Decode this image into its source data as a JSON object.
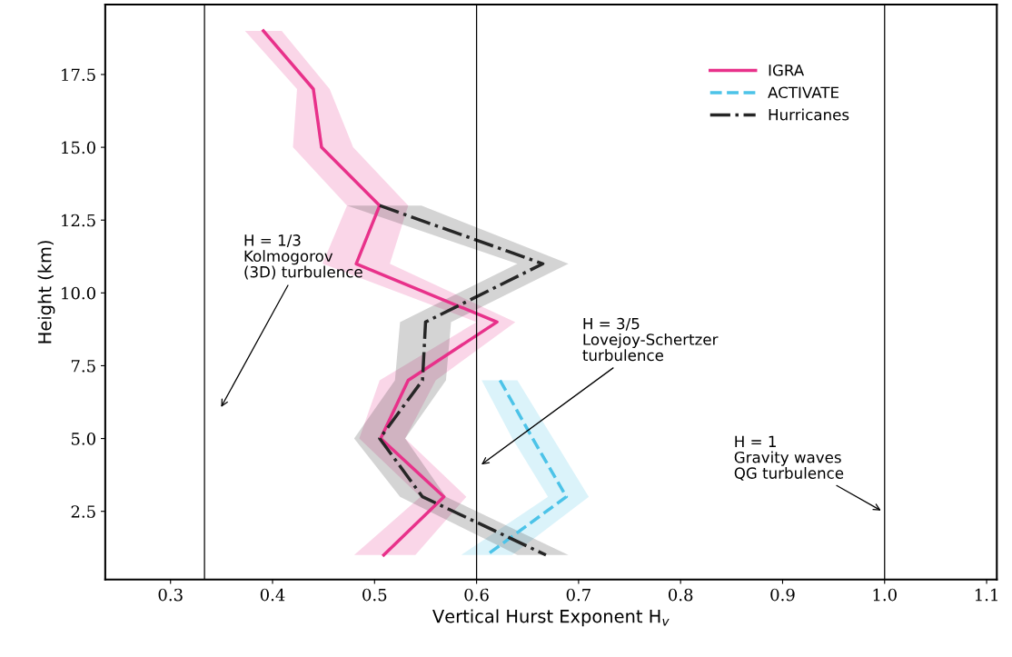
{
  "chart_data": {
    "type": "line",
    "orientation": "horizontal",
    "xlabel": "Vertical Hurst Exponent H$_{v}$",
    "ylabel": "Height (km)",
    "xlim": [
      0.236,
      1.11
    ],
    "ylim": [
      0.16,
      19.9
    ],
    "xticks": [
      {
        "value": 0.3,
        "label": "0.3"
      },
      {
        "value": 0.4,
        "label": "0.4"
      },
      {
        "value": 0.5,
        "label": "0.5"
      },
      {
        "value": 0.6,
        "label": "0.6"
      },
      {
        "value": 0.7,
        "label": "0.7"
      },
      {
        "value": 0.8,
        "label": "0.8"
      },
      {
        "value": 0.9,
        "label": "0.9"
      },
      {
        "value": 1.0,
        "label": "1.0"
      },
      {
        "value": 1.1,
        "label": "1.1"
      }
    ],
    "yticks": [
      {
        "value": 2.5,
        "label": "2.5"
      },
      {
        "value": 5.0,
        "label": "5.0"
      },
      {
        "value": 7.5,
        "label": "7.5"
      },
      {
        "value": 10.0,
        "label": "10.0"
      },
      {
        "value": 12.5,
        "label": "12.5"
      },
      {
        "value": 15.0,
        "label": "15.0"
      },
      {
        "value": 17.5,
        "label": "17.5"
      }
    ],
    "grid": false,
    "legend": "top right",
    "marker": "none",
    "series": [
      {
        "name": "IGRA",
        "color": "#e8318a",
        "line_style": "solid",
        "x": [
          19,
          17,
          15,
          13,
          11,
          9,
          7,
          5,
          3,
          1
        ],
        "values": [
          0.391,
          0.44,
          0.448,
          0.505,
          0.482,
          0.62,
          0.533,
          0.506,
          0.568,
          0.509
        ],
        "lower": [
          0.373,
          0.424,
          0.42,
          0.473,
          0.449,
          0.6,
          0.505,
          0.485,
          0.545,
          0.48
        ],
        "upper": [
          0.409,
          0.456,
          0.479,
          0.533,
          0.515,
          0.638,
          0.56,
          0.53,
          0.59,
          0.54
        ]
      },
      {
        "name": "ACTIVATE",
        "color": "#4cc3e8",
        "line_style": "dashed",
        "x": [
          7,
          5,
          3,
          1
        ],
        "values": [
          0.623,
          0.655,
          0.688,
          0.61
        ],
        "lower": [
          0.605,
          0.635,
          0.67,
          0.585
        ],
        "upper": [
          0.64,
          0.675,
          0.71,
          0.635
        ]
      },
      {
        "name": "Hurricanes",
        "color": "#262626",
        "line_style": "dashdot",
        "x": [
          13,
          11,
          9,
          7,
          5,
          3,
          1
        ],
        "values": [
          0.505,
          0.665,
          0.55,
          0.547,
          0.505,
          0.547,
          0.668
        ],
        "lower": [
          0.473,
          0.64,
          0.525,
          0.52,
          0.48,
          0.525,
          0.64
        ],
        "upper": [
          0.546,
          0.69,
          0.575,
          0.57,
          0.53,
          0.57,
          0.69
        ]
      }
    ],
    "ref_lines": [
      {
        "axis": "x",
        "value": 0.3333,
        "color": "#000000"
      },
      {
        "axis": "x",
        "value": 0.6,
        "color": "#000000"
      },
      {
        "axis": "x",
        "value": 1.0,
        "color": "#000000"
      }
    ],
    "annotations": [
      "H = 1/3\nKolmogorov\n(3D) turbulence",
      "H = 3/5\nLovejoy-Schertzer\nturbulence",
      "H = 1\nGravity waves\nQG turbulence"
    ]
  }
}
